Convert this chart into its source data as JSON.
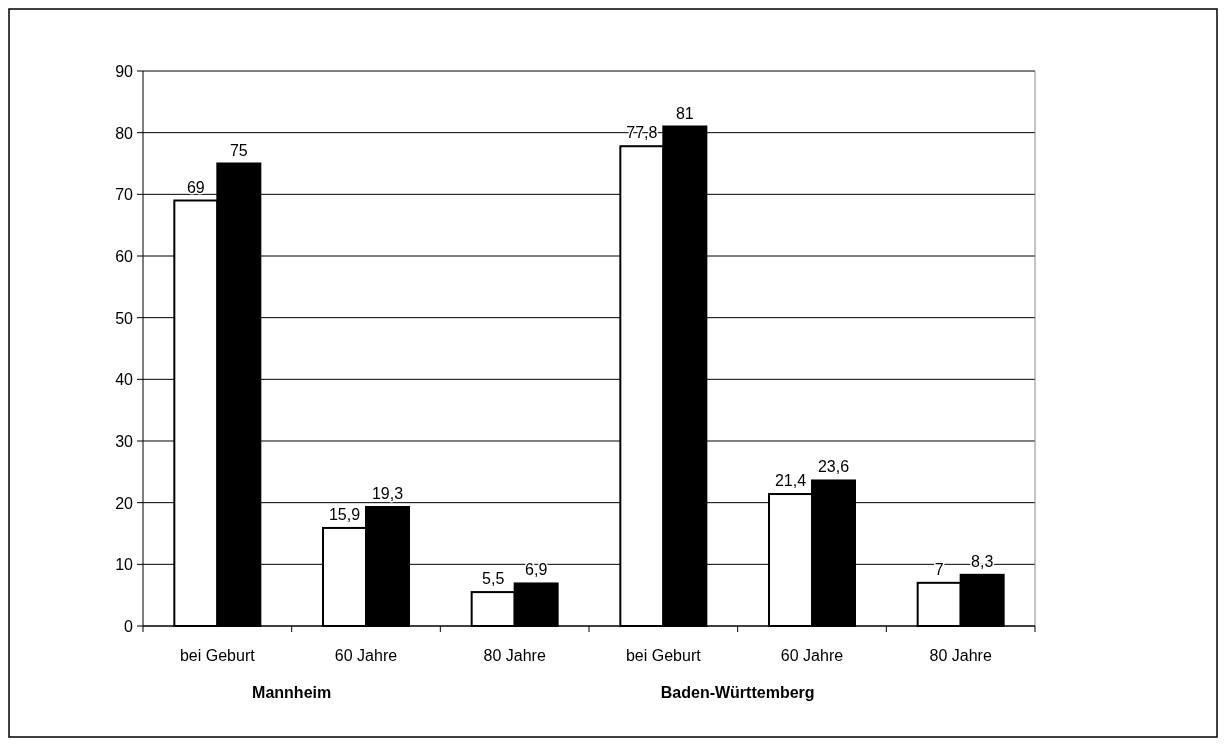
{
  "chart_data": {
    "type": "bar",
    "categories": [
      "bei Geburt",
      "60 Jahre",
      "80 Jahre",
      "bei Geburt",
      "60 Jahre",
      "80 Jahre"
    ],
    "series": [
      {
        "color": "#ffffff",
        "values": [
          69,
          15.9,
          5.5,
          77.8,
          21.4,
          7
        ],
        "value_labels": [
          "69",
          "15,9",
          "5,5",
          "77,8",
          "21,4",
          "7"
        ]
      },
      {
        "color": "#000000",
        "values": [
          75,
          19.3,
          6.9,
          81,
          23.6,
          8.3
        ],
        "value_labels": [
          "75",
          "19,3",
          "6,9",
          "81",
          "23,6",
          "8,3"
        ]
      }
    ],
    "ylim": [
      0,
      90
    ],
    "yticks": [
      0,
      10,
      20,
      30,
      40,
      50,
      60,
      70,
      80,
      90
    ],
    "grid": "y",
    "annotations": [
      "Mannheim",
      "Baden-Württemberg"
    ]
  }
}
